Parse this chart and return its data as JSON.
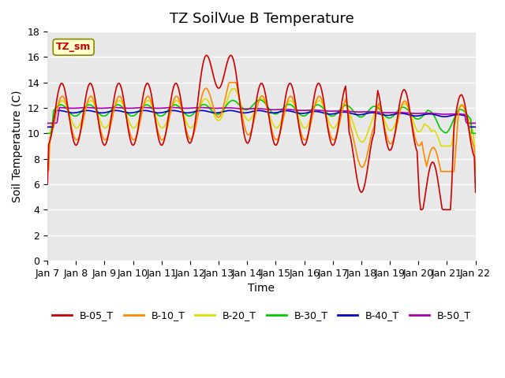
{
  "title": "TZ SoilVue B Temperature",
  "xlabel": "Time",
  "ylabel": "Soil Temperature (C)",
  "ylim": [
    0,
    18
  ],
  "yticks": [
    0,
    2,
    4,
    6,
    8,
    10,
    12,
    14,
    16,
    18
  ],
  "x_labels": [
    "Jan 7",
    "Jan 8",
    "Jan 9",
    "Jan 10",
    "Jan 11",
    "Jan 12",
    "Jan 13",
    "Jan 14",
    "Jan 15",
    "Jan 16",
    "Jan 17",
    "Jan 18",
    "Jan 19",
    "Jan 20",
    "Jan 21",
    "Jan 22"
  ],
  "series_colors": {
    "B-05_T": "#cc0000",
    "B-10_T": "#ff8800",
    "B-20_T": "#dddd00",
    "B-30_T": "#00cc00",
    "B-40_T": "#0000cc",
    "B-50_T": "#aa00aa"
  },
  "annotation_text": "TZ_sm",
  "annotation_bg": "#ffffcc",
  "annotation_border": "#888800",
  "grid_color": "#ffffff",
  "title_fontsize": 13,
  "axis_label_fontsize": 10,
  "tick_fontsize": 9
}
